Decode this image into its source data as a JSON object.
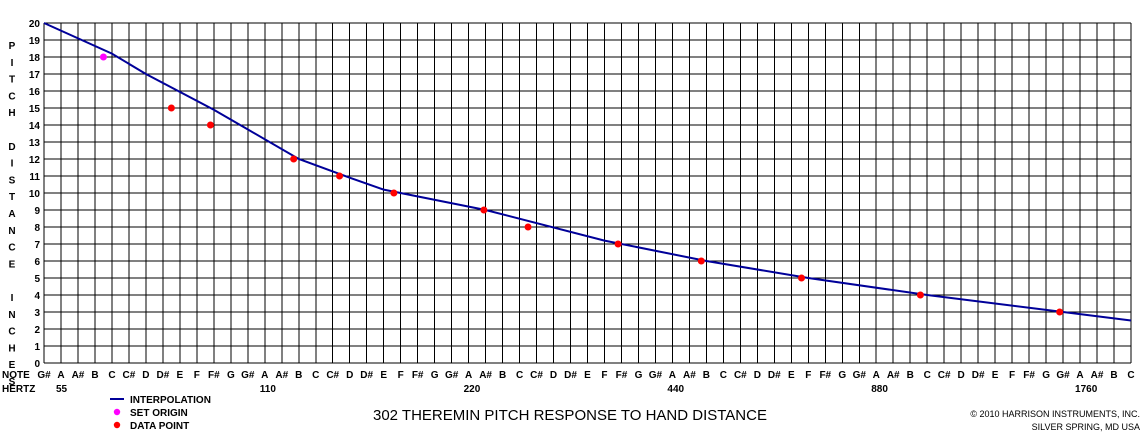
{
  "chart_data": {
    "type": "line",
    "title": "302 THEREMIN PITCH RESPONSE TO HAND DISTANCE",
    "ylabel": "PITCH DISTANCE INCHES",
    "ylabel_lines": [
      "PITCH",
      "DISTANCE",
      "INCHES"
    ],
    "ylim": [
      0,
      20
    ],
    "y_ticks": [
      0,
      1,
      2,
      3,
      4,
      5,
      6,
      7,
      8,
      9,
      10,
      11,
      12,
      13,
      14,
      15,
      16,
      17,
      18,
      19,
      20
    ],
    "note_axis_label": "NOTE",
    "hertz_axis_label": "HERTZ",
    "notes": [
      "G#",
      "A",
      "A#",
      "B",
      "C",
      "C#",
      "D",
      "D#",
      "E",
      "F",
      "F#",
      "G",
      "G#",
      "A",
      "A#",
      "B",
      "C",
      "C#",
      "D",
      "D#",
      "E",
      "F",
      "F#",
      "G",
      "G#",
      "A",
      "A#",
      "B",
      "C",
      "C#",
      "D",
      "D#",
      "E",
      "F",
      "F#",
      "G",
      "G#",
      "A",
      "A#",
      "B",
      "C",
      "C#",
      "D",
      "D#",
      "E",
      "F",
      "F#",
      "G",
      "G#",
      "A",
      "A#",
      "B",
      "C",
      "C#",
      "D",
      "D#",
      "E",
      "F",
      "F#",
      "G",
      "G#",
      "A",
      "A#",
      "B",
      "C"
    ],
    "hertz_labels": [
      {
        "note_index": 1,
        "text": "55"
      },
      {
        "note_index": 13,
        "text": "110"
      },
      {
        "note_index": 25,
        "text": "220"
      },
      {
        "note_index": 37,
        "text": "440"
      },
      {
        "note_index": 49,
        "text": "880"
      },
      {
        "note_index": 61,
        "text": "1760"
      }
    ],
    "grid": true,
    "series": [
      {
        "name": "INTERPOLATION",
        "kind": "line",
        "color": "#000099",
        "points": [
          [
            0,
            20
          ],
          [
            4,
            18.2
          ],
          [
            6,
            17
          ],
          [
            10,
            14.9
          ],
          [
            15,
            12
          ],
          [
            18,
            10.9
          ],
          [
            20,
            10.2
          ],
          [
            26,
            9
          ],
          [
            33,
            7.2
          ],
          [
            39,
            6
          ],
          [
            45,
            5
          ],
          [
            52,
            4
          ],
          [
            60,
            3
          ],
          [
            64,
            2.5
          ]
        ]
      },
      {
        "name": "SET ORIGIN",
        "kind": "points",
        "color": "#ff00ff",
        "points": [
          [
            3.5,
            18
          ]
        ]
      },
      {
        "name": "DATA POINT",
        "kind": "points",
        "color": "#ff0000",
        "points": [
          [
            7.5,
            15
          ],
          [
            9.8,
            14
          ],
          [
            14.7,
            12
          ],
          [
            17.4,
            11
          ],
          [
            20.6,
            10
          ],
          [
            25.9,
            9
          ],
          [
            28.5,
            8
          ],
          [
            33.8,
            7
          ],
          [
            38.7,
            6
          ],
          [
            44.6,
            5
          ],
          [
            51.6,
            4
          ],
          [
            59.8,
            3
          ]
        ]
      }
    ],
    "legend_position": "bottom-left",
    "copyright_lines": [
      "© 2010  HARRISON INSTRUMENTS, INC.",
      "SILVER SPRING, MD USA"
    ]
  }
}
